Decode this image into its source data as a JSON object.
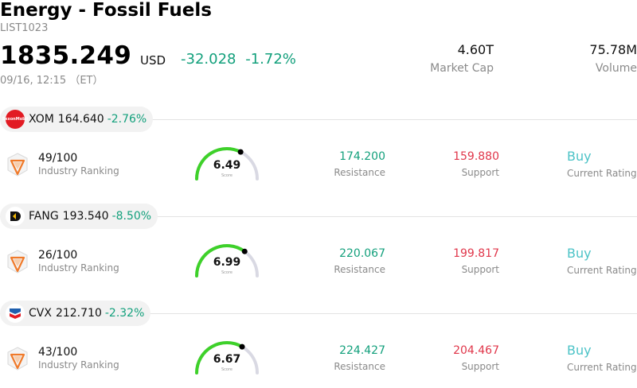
{
  "header": {
    "title": "Energy - Fossil Fuels",
    "list_id": "LIST1023",
    "price": "1835.249",
    "currency": "USD",
    "change": "-32.028",
    "change_pct": "-1.72%",
    "timestamp": "09/16, 12:15 （ET）"
  },
  "stats": {
    "market_cap_value": "4.60T",
    "market_cap_label": "Market Cap",
    "volume_value": "75.78M",
    "volume_label": "Volume"
  },
  "stocks": [
    {
      "ticker": "XOM",
      "price": "164.640",
      "change_pct": "-2.76%",
      "logo_text": "ExxonMobil",
      "ranking": "49/100",
      "ranking_label": "Industry Ranking",
      "score": "6.49",
      "score_fraction": 0.649,
      "score_label": "Score",
      "resistance": "174.200",
      "resistance_label": "Resistance",
      "support": "159.880",
      "support_label": "Support",
      "rating": "Buy",
      "rating_label": "Current Rating"
    },
    {
      "ticker": "FANG",
      "price": "193.540",
      "change_pct": "-8.50%",
      "logo_text": "",
      "ranking": "26/100",
      "ranking_label": "Industry Ranking",
      "score": "6.99",
      "score_fraction": 0.699,
      "score_label": "Score",
      "resistance": "220.067",
      "resistance_label": "Resistance",
      "support": "199.817",
      "support_label": "Support",
      "rating": "Buy",
      "rating_label": "Current Rating"
    },
    {
      "ticker": "CVX",
      "price": "212.710",
      "change_pct": "-2.32%",
      "logo_text": "",
      "ranking": "43/100",
      "ranking_label": "Industry Ranking",
      "score": "6.67",
      "score_fraction": 0.667,
      "score_label": "Score",
      "resistance": "224.427",
      "resistance_label": "Resistance",
      "support": "204.467",
      "support_label": "Support",
      "rating": "Buy",
      "rating_label": "Current Rating"
    }
  ],
  "colors": {
    "positive": "#13a07c",
    "negative": "#e0364a",
    "rating": "#4cc3c7",
    "gauge_fill": "#3ed12a",
    "gauge_track": "#d9d9e3"
  },
  "icons": {
    "ranking": "ranking-badge-icon",
    "xom_logo": "exxonmobil-logo",
    "fang_logo": "diamondback-logo",
    "cvx_logo": "chevron-logo"
  }
}
